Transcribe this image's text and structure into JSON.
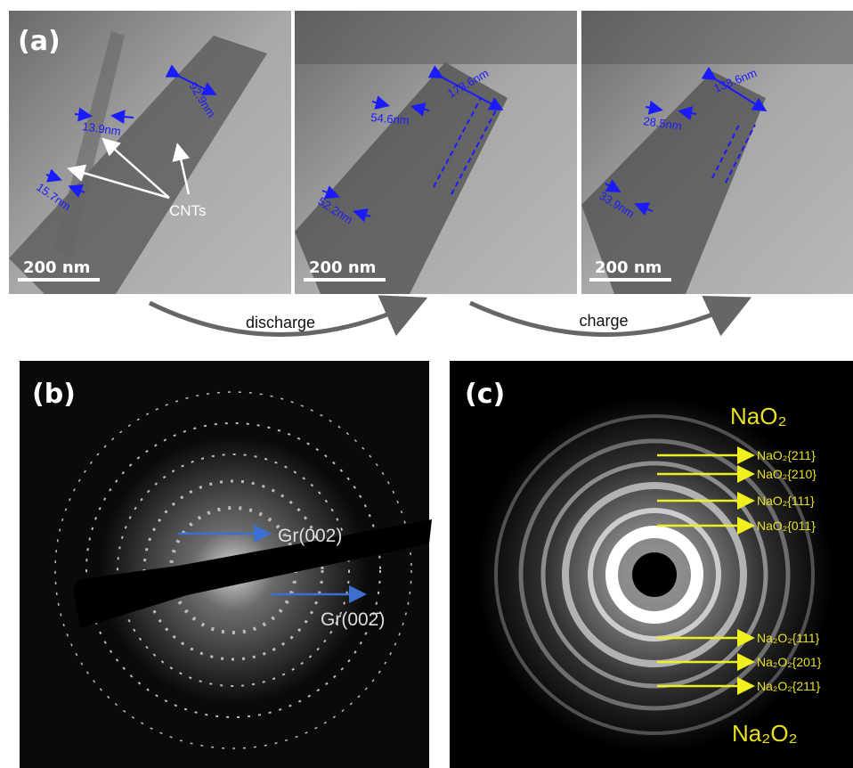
{
  "panel_a": {
    "label": "(a)",
    "images": [
      {
        "scale_bar": "200 nm",
        "measurements": [
          "92.9nm",
          "13.9nm",
          "15.7nm"
        ],
        "annotation": "CNTs"
      },
      {
        "scale_bar": "200 nm",
        "measurements": [
          "173.6nm",
          "54.6nm",
          "52.2nm"
        ]
      },
      {
        "scale_bar": "200 nm",
        "measurements": [
          "138.6nm",
          "28.5nm",
          "33.9nm"
        ]
      }
    ],
    "arrows": [
      "discharge",
      "charge"
    ]
  },
  "panel_b": {
    "label": "(b)",
    "annotations": [
      "Gr(002)",
      "Gr(002̄)"
    ]
  },
  "panel_c": {
    "label": "(c)",
    "phase_top": "NaO₂",
    "rings_top": [
      "NaO₂{211}",
      "NaO₂{210}",
      "NaO₂{111}",
      "NaO₂{011}"
    ],
    "rings_bottom": [
      "Na₂O₂{111}",
      "Na₂O₂{201}",
      "Na₂O₂{211}"
    ],
    "phase_bottom": "Na₂O₂"
  }
}
